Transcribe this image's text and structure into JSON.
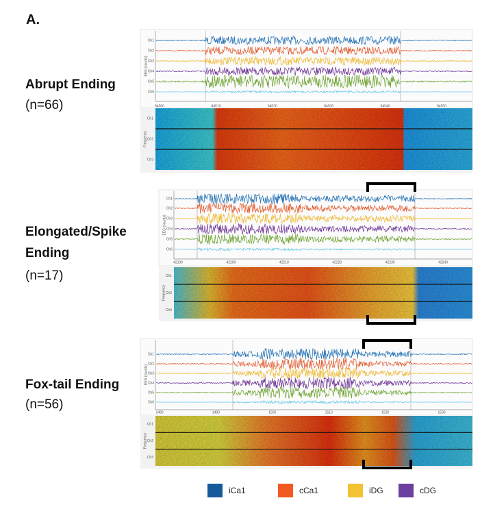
{
  "panel_label": "A.",
  "rows": [
    {
      "title": "Abrupt Ending",
      "n": "(n=66)",
      "y_axis": "EEG (counts)",
      "channels": [
        "Ch1",
        "Ch2",
        "Ch3",
        "Ch4",
        "Ch5",
        "Ch6"
      ],
      "x_ticks": [
        "84500",
        "84510",
        "84520",
        "84530",
        "84540",
        "84550"
      ],
      "spectrogram_y_axis": "Frequency",
      "spectrogram_channels": [
        "Ch1",
        "Ch2",
        "Ch3"
      ]
    },
    {
      "title": "Elongated/Spike Ending",
      "n": "(n=17)",
      "y_axis": "EEG (counts)",
      "channels": [
        "Ch1",
        "Ch2",
        "Ch3",
        "Ch4",
        "Ch5",
        "Ch6"
      ],
      "x_ticks": [
        "42190",
        "42200",
        "42210",
        "42220",
        "42230",
        "42240"
      ],
      "spectrogram_y_axis": "Frequency",
      "spectrogram_channels": [
        "Ch1",
        "Ch2",
        "Ch3"
      ]
    },
    {
      "title": "Fox-tail Ending",
      "n": "(n=56)",
      "y_axis": "EEG (counts)",
      "channels": [
        "Ch1",
        "Ch2",
        "Ch3",
        "Ch4",
        "Ch5",
        "Ch6"
      ],
      "x_ticks": [
        "1480",
        "1490",
        "1500",
        "1510",
        "1520",
        "1530"
      ],
      "spectrogram_y_axis": "Frequency",
      "spectrogram_channels": [
        "Ch1",
        "Ch2",
        "Ch3"
      ]
    }
  ],
  "legend": [
    {
      "label": "iCa1",
      "color": "#165a9c"
    },
    {
      "label": "cCa1",
      "color": "#f15a22"
    },
    {
      "label": "iDG",
      "color": "#f3c233"
    },
    {
      "label": "cDG",
      "color": "#6c3fa0"
    }
  ]
}
